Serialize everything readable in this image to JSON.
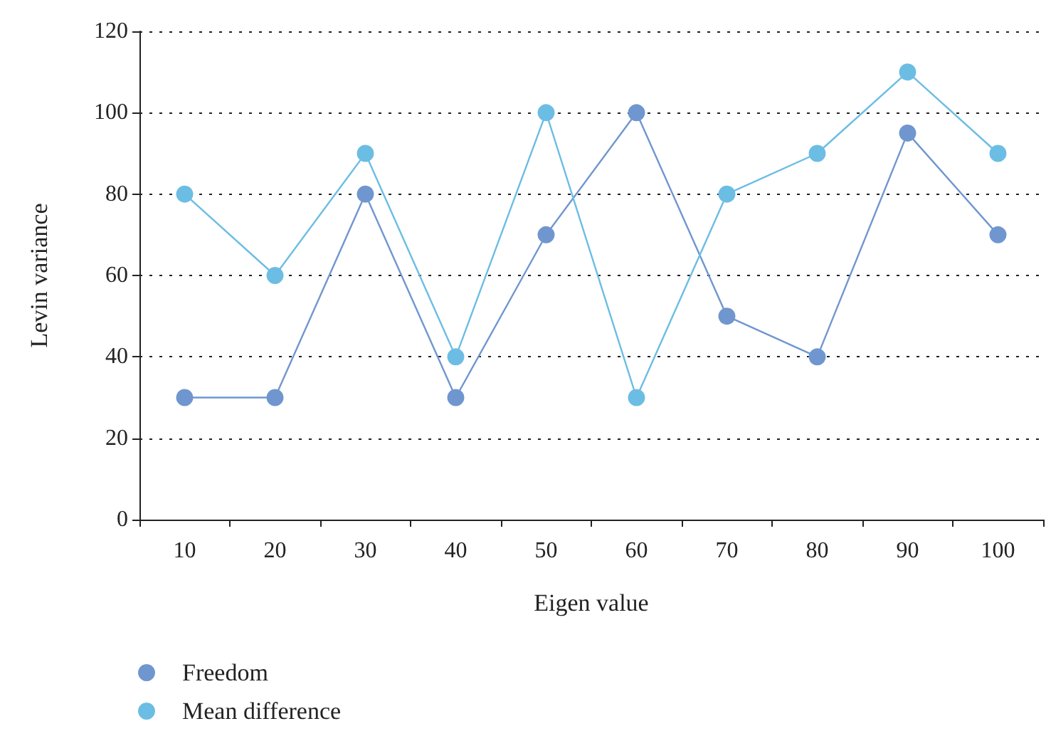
{
  "chart_data": {
    "type": "line",
    "xlabel": "Eigen value",
    "ylabel": "Levin variance",
    "categories": [
      "10",
      "20",
      "30",
      "40",
      "50",
      "60",
      "70",
      "80",
      "90",
      "100"
    ],
    "series": [
      {
        "name": "Freedom",
        "color": "#7096cf",
        "values": [
          30,
          30,
          80,
          30,
          70,
          100,
          50,
          40,
          95,
          70
        ]
      },
      {
        "name": "Mean difference",
        "color": "#6cbde3",
        "values": [
          80,
          60,
          90,
          40,
          100,
          30,
          80,
          90,
          110,
          90
        ]
      }
    ],
    "ylim": [
      0,
      120
    ],
    "yticks": [
      0,
      20,
      40,
      60,
      80,
      100,
      120
    ],
    "grid": "y",
    "legend": "bottom left",
    "marker": "circle",
    "line_style": "solid"
  }
}
